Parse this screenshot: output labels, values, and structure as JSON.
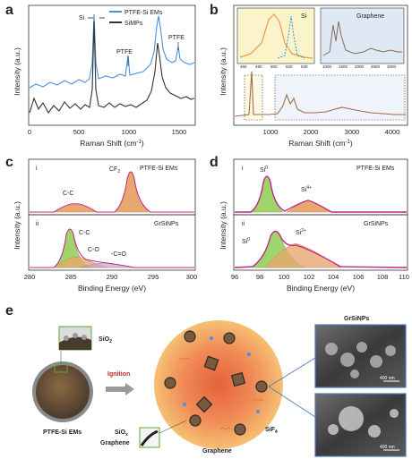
{
  "panels": {
    "a": {
      "letter": "a",
      "xlabel": "Raman Shift (cm",
      "xlabel_sup": "-1",
      "xlabel_end": ")",
      "ylabel": "Intensity (a.u.)",
      "xticks": [
        "0",
        "500",
        "1000",
        "1500"
      ],
      "legend": [
        "PTFE-Si EMs",
        "SiMPs"
      ],
      "annotations": [
        "Si",
        "PTFE",
        "PTFE"
      ]
    },
    "b": {
      "letter": "b",
      "xlabel": "Raman Shift (cm",
      "xlabel_sup": "-1",
      "xlabel_end": ")",
      "ylabel": "Intensity (a.u.)",
      "xticks": [
        "1000",
        "2000",
        "3000",
        "4000"
      ],
      "inset_si": {
        "label": "Si",
        "ticks": [
          "460",
          "480",
          "500",
          "520",
          "540"
        ]
      },
      "inset_graphene": {
        "label": "Graphene",
        "ticks": [
          "1000",
          "1500",
          "2000",
          "2500",
          "3000"
        ]
      }
    },
    "c": {
      "letter": "c",
      "xlabel": "Binding Energy (eV)",
      "ylabel": "Intensity (a.u.)",
      "xticks": [
        "280",
        "285",
        "290",
        "295",
        "300"
      ],
      "top": {
        "index": "i",
        "sample": "PTFE-Si EMs",
        "peaks": [
          "C-C",
          "CF"
        ],
        "cf_sub": "2"
      },
      "bottom": {
        "index": "ii",
        "sample": "GrSiNPs",
        "peaks": [
          "C-C",
          "C-O",
          "-C=O"
        ]
      }
    },
    "d": {
      "letter": "d",
      "xlabel": "Binding Energy (eV)",
      "ylabel": "Intensity (a.u.)",
      "xticks": [
        "96",
        "98",
        "100",
        "102",
        "104",
        "106",
        "108",
        "110"
      ],
      "top": {
        "index": "i",
        "sample": "PTFE-Si EMs",
        "peaks": [
          "Si",
          "Si"
        ],
        "sups": [
          "0",
          "4+"
        ]
      },
      "bottom": {
        "index": "ii",
        "sample": "GrSiNPs",
        "peaks": [
          "Si",
          "Si"
        ],
        "sups": [
          "0",
          "2+"
        ]
      }
    },
    "e": {
      "letter": "e",
      "labels": {
        "sio2": "SiO",
        "sio2_sub": "2",
        "ignition": "Ignition",
        "ptfe": "PTFE-Si EMs",
        "siox": "SiO",
        "siox_sub": "x",
        "graphene1": "Graphene",
        "graphene2": "Graphene",
        "sif4": "SiF",
        "sif4_sub": "4",
        "grsinps": "GrSiNPs",
        "scale1": "400 nm",
        "scale2": "400 nm"
      }
    }
  },
  "colors": {
    "blue": "#4a90e2",
    "dark": "#333333",
    "green": "#8fcf5a",
    "orange": "#e3a061",
    "brown": "#c7875a",
    "magenta": "#c0288a"
  }
}
